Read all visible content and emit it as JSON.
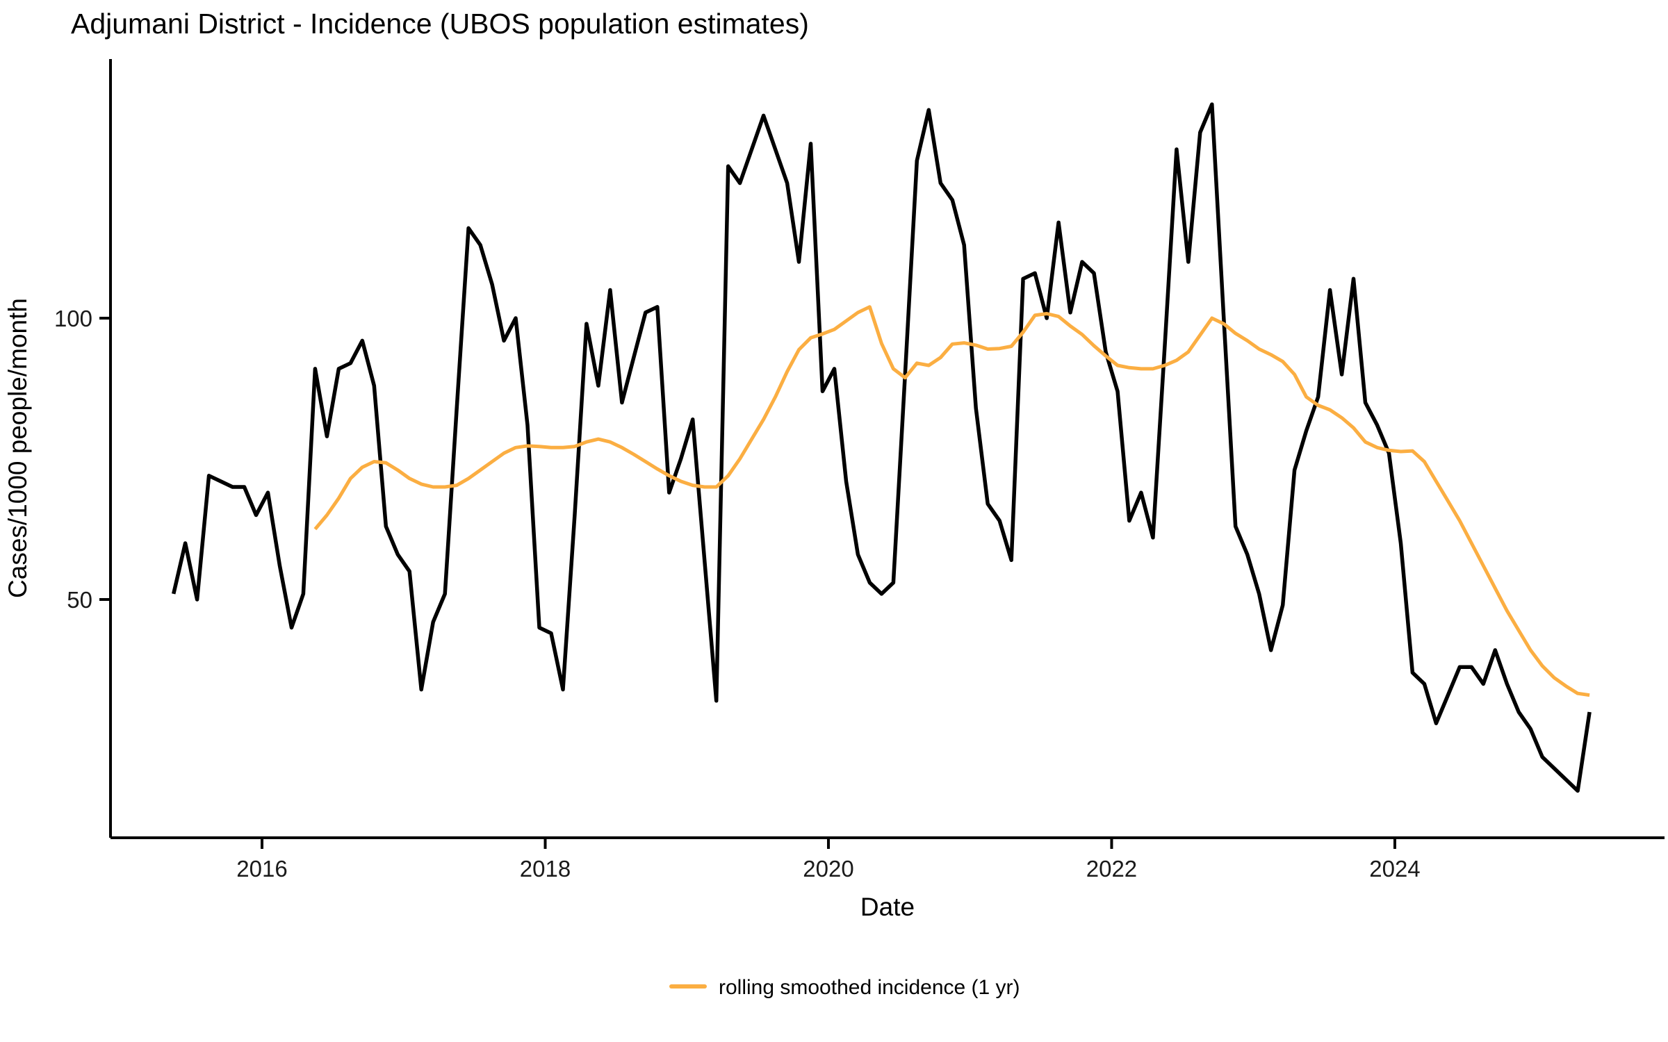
{
  "title": "Adjumani District - Incidence (UBOS population estimates)",
  "axes": {
    "x": {
      "label": "Date",
      "tick_labels": [
        "2016",
        "2018",
        "2020",
        "2022",
        "2024"
      ]
    },
    "y": {
      "label": "Cases/1000 people/month",
      "tick_labels": [
        "50",
        "100"
      ]
    }
  },
  "legend": {
    "items": [
      {
        "label": "rolling smoothed incidence (1 yr)",
        "color": "#FBAE42"
      }
    ]
  },
  "colors": {
    "incidence_line": "#000000",
    "smoothed_line": "#FBAE42",
    "axis": "#000000",
    "background": "#ffffff"
  },
  "chart_data": {
    "type": "line",
    "title": "Adjumani District - Incidence (UBOS population estimates)",
    "xlabel": "Date",
    "ylabel": "Cases/1000 people/month",
    "grid": false,
    "legend_position": "bottom-center",
    "x_tick_years": [
      2016,
      2018,
      2020,
      2022,
      2024
    ],
    "y_tick_values": [
      50,
      100
    ],
    "xlim_years": [
      2014.93,
      2025.88
    ],
    "ylim": [
      7.65,
      146.05
    ],
    "series": [
      {
        "name": "monthly incidence",
        "color": "#000000",
        "start_year": 2015,
        "start_month": 5,
        "values": [
          51,
          60,
          50,
          72,
          71,
          70,
          70,
          65,
          69,
          56,
          45,
          51,
          91,
          79,
          91,
          92,
          96,
          88,
          63,
          58,
          55,
          34,
          46,
          51,
          84,
          116,
          113,
          106,
          96,
          100,
          81,
          45,
          44,
          34,
          65,
          99,
          88,
          105,
          85,
          93,
          101,
          102,
          69,
          75,
          82,
          57,
          32,
          127,
          124,
          130,
          136,
          130,
          124,
          110,
          131,
          87,
          91,
          71,
          58,
          53,
          51,
          53,
          90,
          128,
          137,
          124,
          121,
          113,
          84,
          67,
          64,
          57,
          107,
          108,
          100,
          117,
          101,
          110,
          108,
          94,
          87,
          64,
          69,
          61,
          95,
          130,
          110,
          133,
          138,
          100,
          63,
          58,
          51,
          41,
          49,
          73,
          80,
          86,
          105,
          90,
          107,
          85,
          81,
          76,
          60,
          37,
          35,
          28,
          33,
          38,
          38,
          35,
          41,
          35,
          30,
          27,
          22,
          20,
          18,
          16,
          30
        ]
      },
      {
        "name": "rolling smoothed incidence (1 yr)",
        "color": "#FBAE42",
        "start_year": 2016,
        "start_month": 5,
        "values": [
          62.5,
          65,
          68,
          71.5,
          73.5,
          74.5,
          74.3,
          73,
          71.5,
          70.5,
          70,
          70,
          70.3,
          71.5,
          73,
          74.5,
          76,
          77,
          77.3,
          77.2,
          77,
          77,
          77.2,
          78,
          78.5,
          78,
          77,
          75.8,
          74.5,
          73.2,
          72,
          71,
          70.3,
          70,
          70,
          72,
          75,
          78.5,
          82,
          86,
          90.5,
          94.4,
          96.5,
          97.2,
          98,
          99.5,
          101,
          102,
          95.5,
          91,
          89.4,
          92,
          91.6,
          93,
          95.4,
          95.6,
          95.2,
          94.5,
          94.6,
          95,
          97.5,
          100.5,
          100.8,
          100.3,
          98.6,
          97.1,
          95.1,
          93.3,
          91.6,
          91.2,
          91,
          91,
          91.6,
          92.5,
          94,
          97,
          100,
          99,
          97.3,
          96,
          94.5,
          93.5,
          92.3,
          90,
          86,
          84.5,
          83.7,
          82.3,
          80.5,
          78,
          77,
          76.5,
          76.3,
          76.4,
          74.5,
          71,
          67.5,
          64,
          60,
          56,
          52,
          48,
          44.5,
          41,
          38.2,
          36.1,
          34.6,
          33.3,
          33
        ]
      }
    ]
  }
}
